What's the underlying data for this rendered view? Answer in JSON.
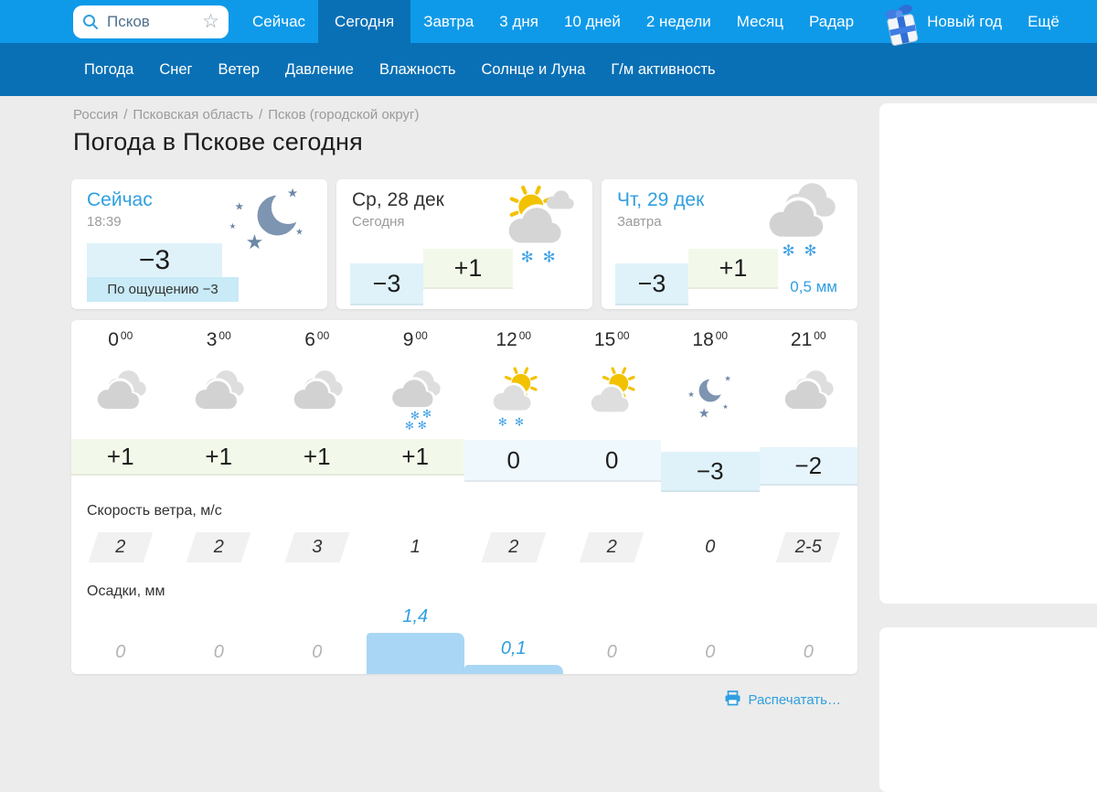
{
  "colors": {
    "accent_blue": "#0e9ae9",
    "dark_blue": "#0a70b5",
    "link_blue": "#2f9fe0",
    "page_bg": "#ececec",
    "temp_cold_bg": "#dff2fa",
    "temp_cold2_bg": "#e6f4fb",
    "temp_zero_bg": "#eef8fd",
    "temp_warm_bg": "#f3f9ea",
    "temp_feels_bg": "#c9eaf7",
    "bar_blue": "#a8d6f4",
    "flake_blue": "#41a2e6",
    "cloud_gray": "#d2d2d2",
    "sun_yellow": "#f2c200",
    "moon_slate": "#7e95b1"
  },
  "topnav": {
    "search": {
      "value": "Псков"
    },
    "tabs": [
      {
        "name": "now",
        "label": "Сейчас",
        "active": false
      },
      {
        "name": "today",
        "label": "Сегодня",
        "active": true
      },
      {
        "name": "tomorrow",
        "label": "Завтра",
        "active": false
      },
      {
        "name": "3-days",
        "label": "3 дня",
        "active": false
      },
      {
        "name": "10-days",
        "label": "10 дней",
        "active": false
      },
      {
        "name": "2-weeks",
        "label": "2 недели",
        "active": false
      },
      {
        "name": "month",
        "label": "Месяц",
        "active": false
      },
      {
        "name": "radar",
        "label": "Радар",
        "active": false
      },
      {
        "name": "new-year",
        "label": "Новый год",
        "active": false,
        "gift": true
      },
      {
        "name": "more",
        "label": "Ещё",
        "active": false
      }
    ],
    "subtabs": [
      {
        "name": "weather",
        "label": "Погода"
      },
      {
        "name": "snow",
        "label": "Снег"
      },
      {
        "name": "wind",
        "label": "Ветер"
      },
      {
        "name": "pressure",
        "label": "Давление"
      },
      {
        "name": "humidity",
        "label": "Влажность"
      },
      {
        "name": "sun-and-moon",
        "label": "Солнце и Луна"
      },
      {
        "name": "geomagnetic-activity",
        "label": "Г/м активность"
      }
    ]
  },
  "breadcrumb": [
    "Россия",
    "Псковская область",
    "Псков (городской округ)"
  ],
  "page_title": "Погода в Пскове сегодня",
  "cards": [
    {
      "title": "Сейчас",
      "subtitle": "18:39",
      "temp": "−3",
      "feels": "По ощущению −3",
      "icon": "moonstars-big"
    },
    {
      "title": "Ср, 28 дек",
      "subtitle": "Сегодня",
      "temp_min": "−3",
      "temp_max": "+1",
      "icon": "suncloud-snow-big"
    },
    {
      "title": "Чт, 29 дек",
      "subtitle": "Завтра",
      "temp_min": "−3",
      "temp_max": "+1",
      "icon": "clouds-snow-big",
      "precip": "0,5 мм"
    }
  ],
  "hourly": {
    "times": [
      {
        "h": "0",
        "m": "00"
      },
      {
        "h": "3",
        "m": "00"
      },
      {
        "h": "6",
        "m": "00"
      },
      {
        "h": "9",
        "m": "00"
      },
      {
        "h": "12",
        "m": "00"
      },
      {
        "h": "15",
        "m": "00"
      },
      {
        "h": "18",
        "m": "00"
      },
      {
        "h": "21",
        "m": "00"
      }
    ],
    "icons": [
      "clouds",
      "clouds",
      "clouds",
      "clouds-snow4",
      "suncloud-snow2",
      "suncloud",
      "moonstars",
      "clouds"
    ],
    "temps": [
      {
        "t": "+1",
        "band": "warm"
      },
      {
        "t": "+1",
        "band": "warm"
      },
      {
        "t": "+1",
        "band": "warm"
      },
      {
        "t": "+1",
        "band": "warm"
      },
      {
        "t": "0",
        "band": "zero"
      },
      {
        "t": "0",
        "band": "zero"
      },
      {
        "t": "−3",
        "band": "cold_low"
      },
      {
        "t": "−2",
        "band": "cold"
      }
    ],
    "wind_label": "Скорость ветра, м/с",
    "wind": [
      {
        "v": "2",
        "plate": true
      },
      {
        "v": "2",
        "plate": true
      },
      {
        "v": "3",
        "plate": true
      },
      {
        "v": "1",
        "plate": false
      },
      {
        "v": "2",
        "plate": true
      },
      {
        "v": "2",
        "plate": true
      },
      {
        "v": "0",
        "plate": false
      },
      {
        "v": "2-5",
        "plate": true
      }
    ],
    "precip_label": "Осадки, мм",
    "precip": [
      {
        "v": "0",
        "bar": 0
      },
      {
        "v": "0",
        "bar": 0
      },
      {
        "v": "0",
        "bar": 0
      },
      {
        "v": "1,4",
        "bar": 45
      },
      {
        "v": "0,1",
        "bar": 10
      },
      {
        "v": "0",
        "bar": 0
      },
      {
        "v": "0",
        "bar": 0
      },
      {
        "v": "0",
        "bar": 0
      }
    ]
  },
  "print_label": "Распечатать…"
}
